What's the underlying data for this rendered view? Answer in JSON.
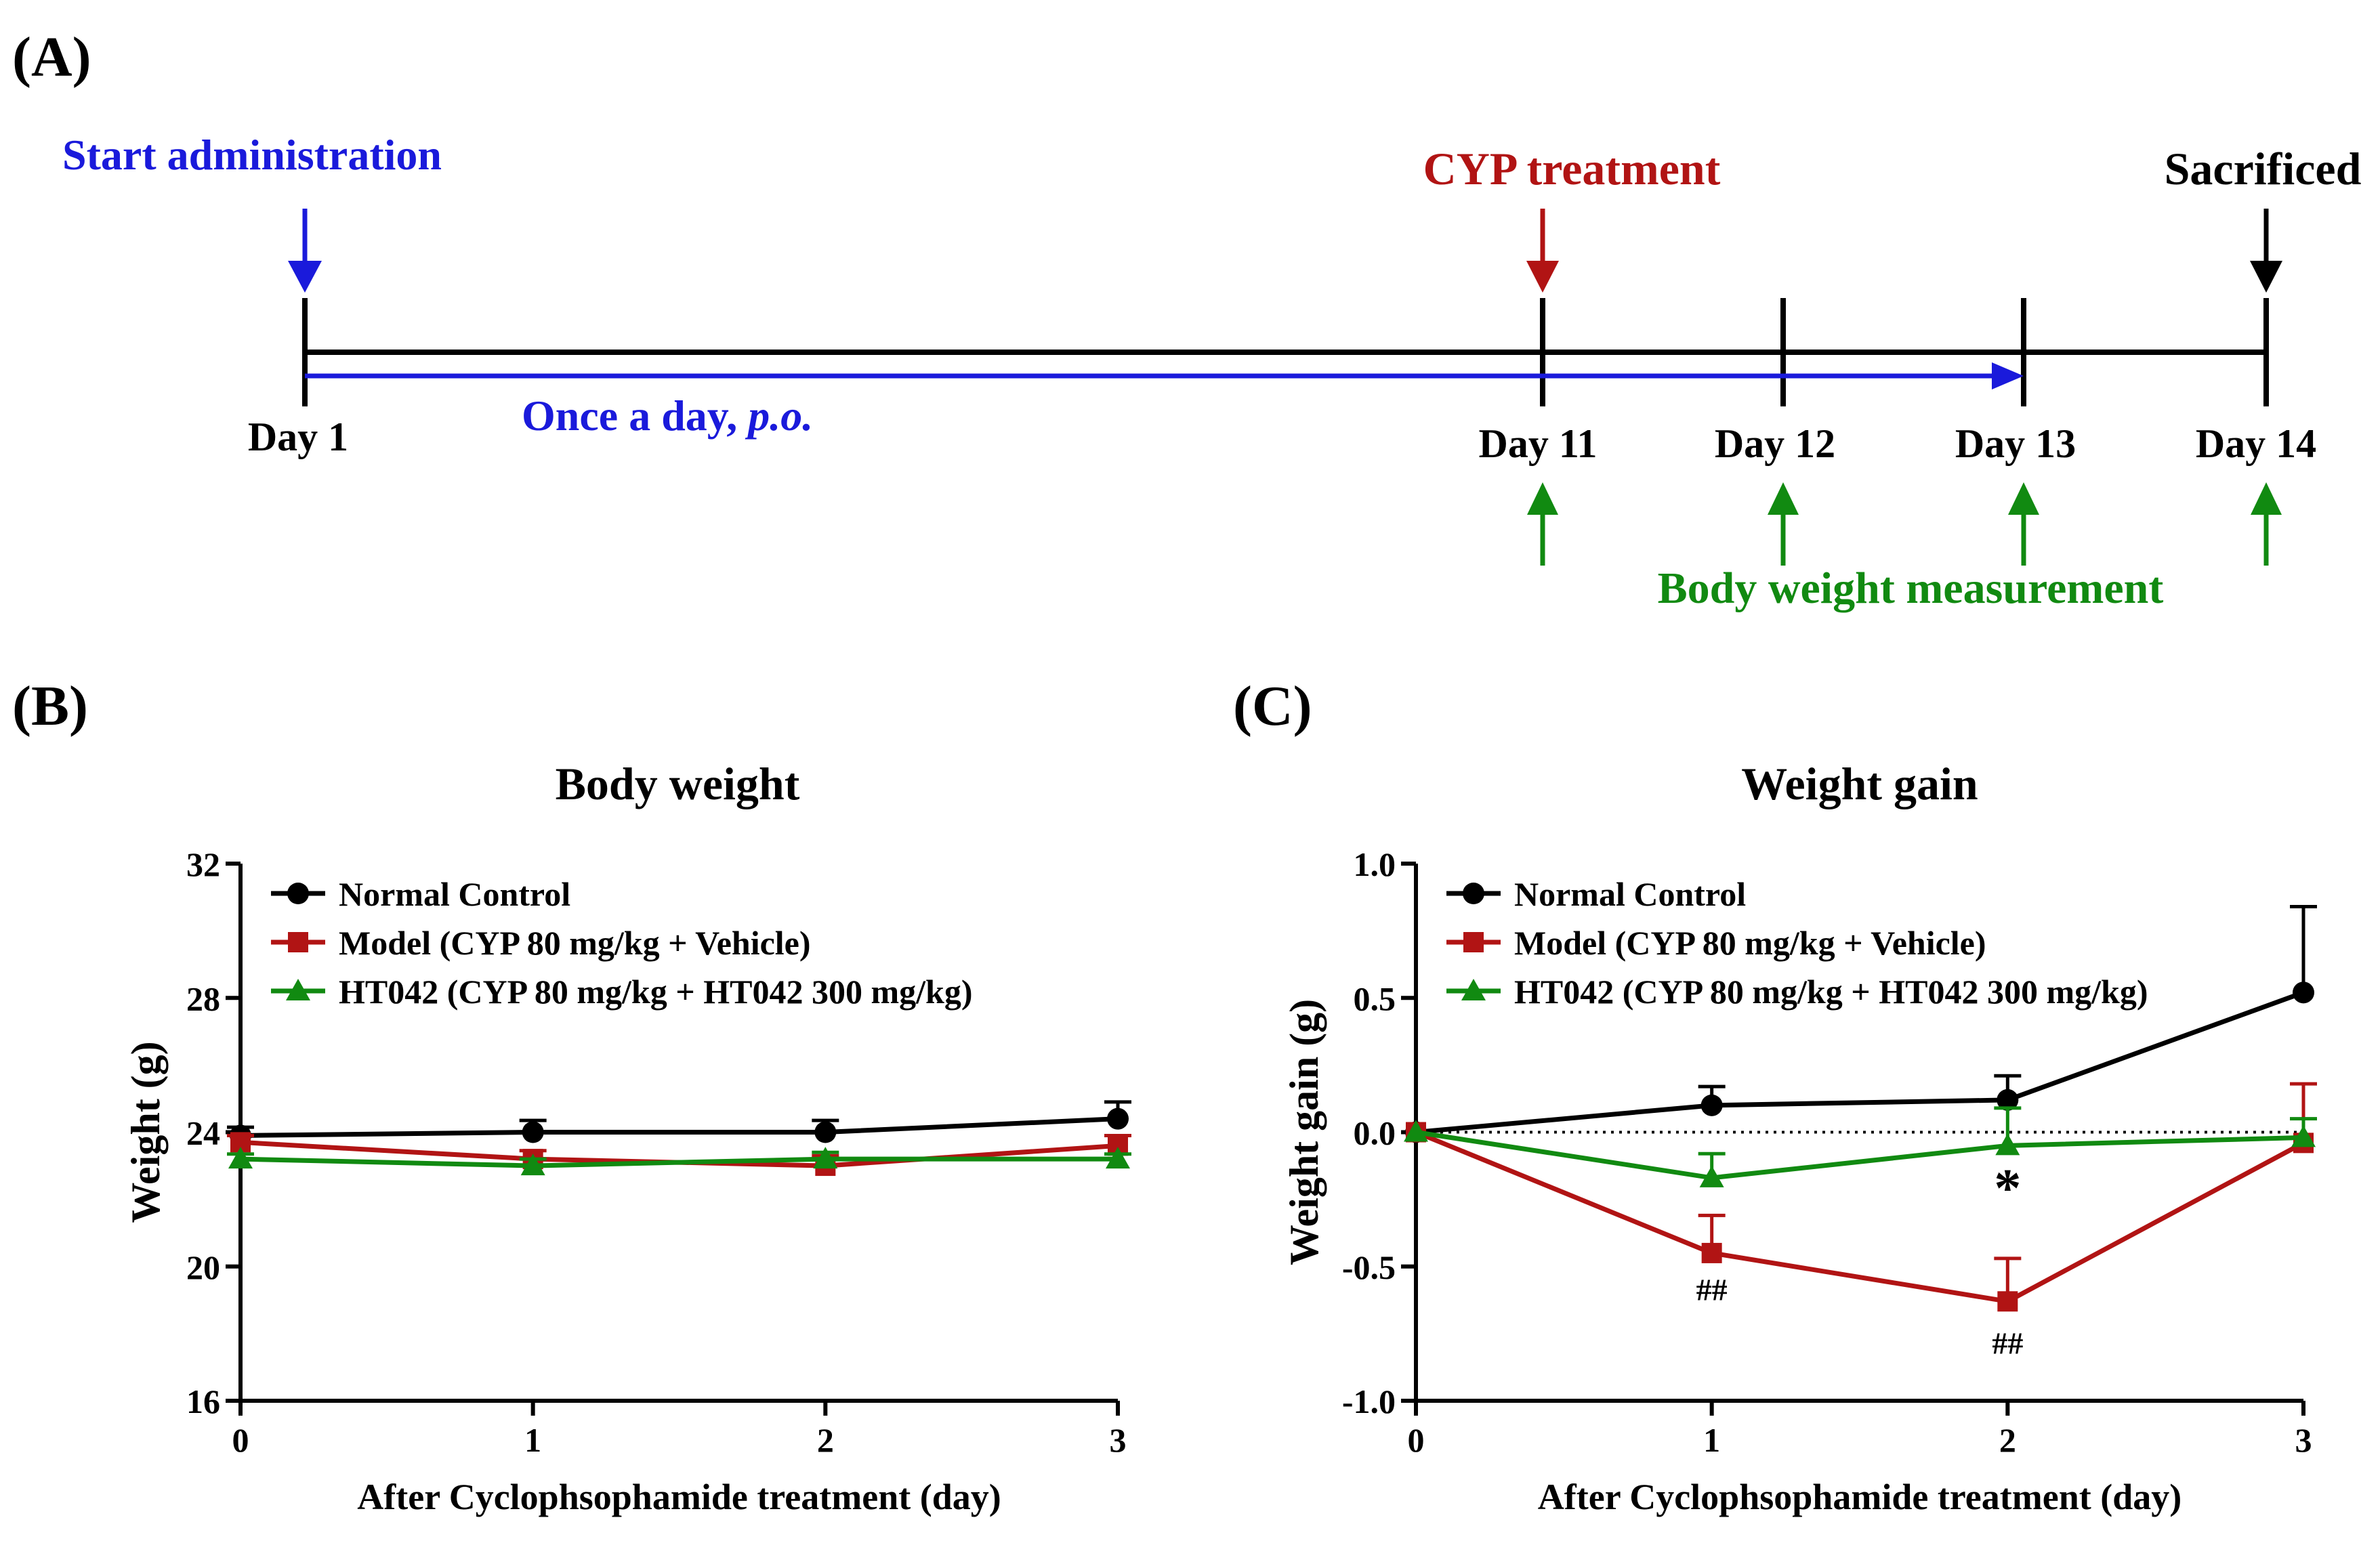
{
  "colors": {
    "black": "#000000",
    "blue": "#1a1adb",
    "red": "#b11414",
    "green": "#118a11"
  },
  "timeline": {
    "panel_label": "(A)",
    "start_label": "Start administration",
    "cyp_label": "CYP treatment",
    "sacrificed_label": "Sacrificed",
    "dosing_label_main": "Once a day, ",
    "dosing_label_italic": "p.o.",
    "days": [
      "Day 1",
      "Day 11",
      "Day 12",
      "Day 13",
      "Day 14"
    ],
    "measurement_label": "Body weight measurement"
  },
  "chart_data": [
    {
      "panel_label": "(B)",
      "type": "line",
      "title": "Body weight",
      "xlabel": "After Cyclophsophamide treatment (day)",
      "ylabel": "Weight (g)",
      "x": [
        0,
        1,
        2,
        3
      ],
      "xticks": [
        "0",
        "1",
        "2",
        "3"
      ],
      "ylim": [
        16,
        32
      ],
      "yticks": [
        "16",
        "20",
        "24",
        "28",
        "32"
      ],
      "legend_position": "top-left",
      "series": [
        {
          "name": "Normal Control",
          "marker": "circle",
          "color": "#000000",
          "values": [
            23.9,
            24.0,
            24.0,
            24.4
          ],
          "error": [
            0.25,
            0.35,
            0.35,
            0.5
          ]
        },
        {
          "name": "Model (CYP 80 mg/kg + Vehicle)",
          "marker": "square",
          "color": "#b11414",
          "values": [
            23.7,
            23.2,
            23.0,
            23.6
          ],
          "error": [
            0.2,
            0.25,
            0.3,
            0.3
          ]
        },
        {
          "name": "HT042 (CYP 80 mg/kg + HT042 300 mg/kg)",
          "marker": "triangle",
          "color": "#118a11",
          "values": [
            23.2,
            23.0,
            23.2,
            23.2
          ],
          "error": [
            0.15,
            0.2,
            0.2,
            0.15
          ]
        }
      ],
      "annotations": []
    },
    {
      "panel_label": "(C)",
      "type": "line",
      "title": "Weight gain",
      "xlabel": "After Cyclophsophamide treatment (day)",
      "ylabel": "Weight gain (g)",
      "x": [
        0,
        1,
        2,
        3
      ],
      "xticks": [
        "0",
        "1",
        "2",
        "3"
      ],
      "ylim": [
        -1.0,
        1.0
      ],
      "yticks": [
        "-1.0",
        "-0.5",
        "0.0",
        "0.5",
        "1.0"
      ],
      "zero_line": true,
      "legend_position": "top-left",
      "series": [
        {
          "name": "Normal Control",
          "marker": "circle",
          "color": "#000000",
          "values": [
            0.0,
            0.1,
            0.12,
            0.52
          ],
          "error": [
            0,
            0.07,
            0.09,
            0.32
          ]
        },
        {
          "name": "Model (CYP 80 mg/kg + Vehicle)",
          "marker": "square",
          "color": "#b11414",
          "values": [
            0.0,
            -0.45,
            -0.63,
            -0.04
          ],
          "error": [
            0,
            0.14,
            0.16,
            0.22
          ]
        },
        {
          "name": "HT042 (CYP 80 mg/kg + HT042 300 mg/kg)",
          "marker": "triangle",
          "color": "#118a11",
          "values": [
            0.0,
            -0.17,
            -0.05,
            -0.02
          ],
          "error": [
            0,
            0.09,
            0.14,
            0.07
          ]
        }
      ],
      "annotations": [
        {
          "text": "##",
          "x": 1,
          "y": -0.59,
          "color": "#000000"
        },
        {
          "text": "##",
          "x": 2,
          "y": -0.79,
          "color": "#000000"
        },
        {
          "text": "*",
          "x": 2,
          "y": -0.2,
          "color": "#000000"
        }
      ]
    }
  ]
}
